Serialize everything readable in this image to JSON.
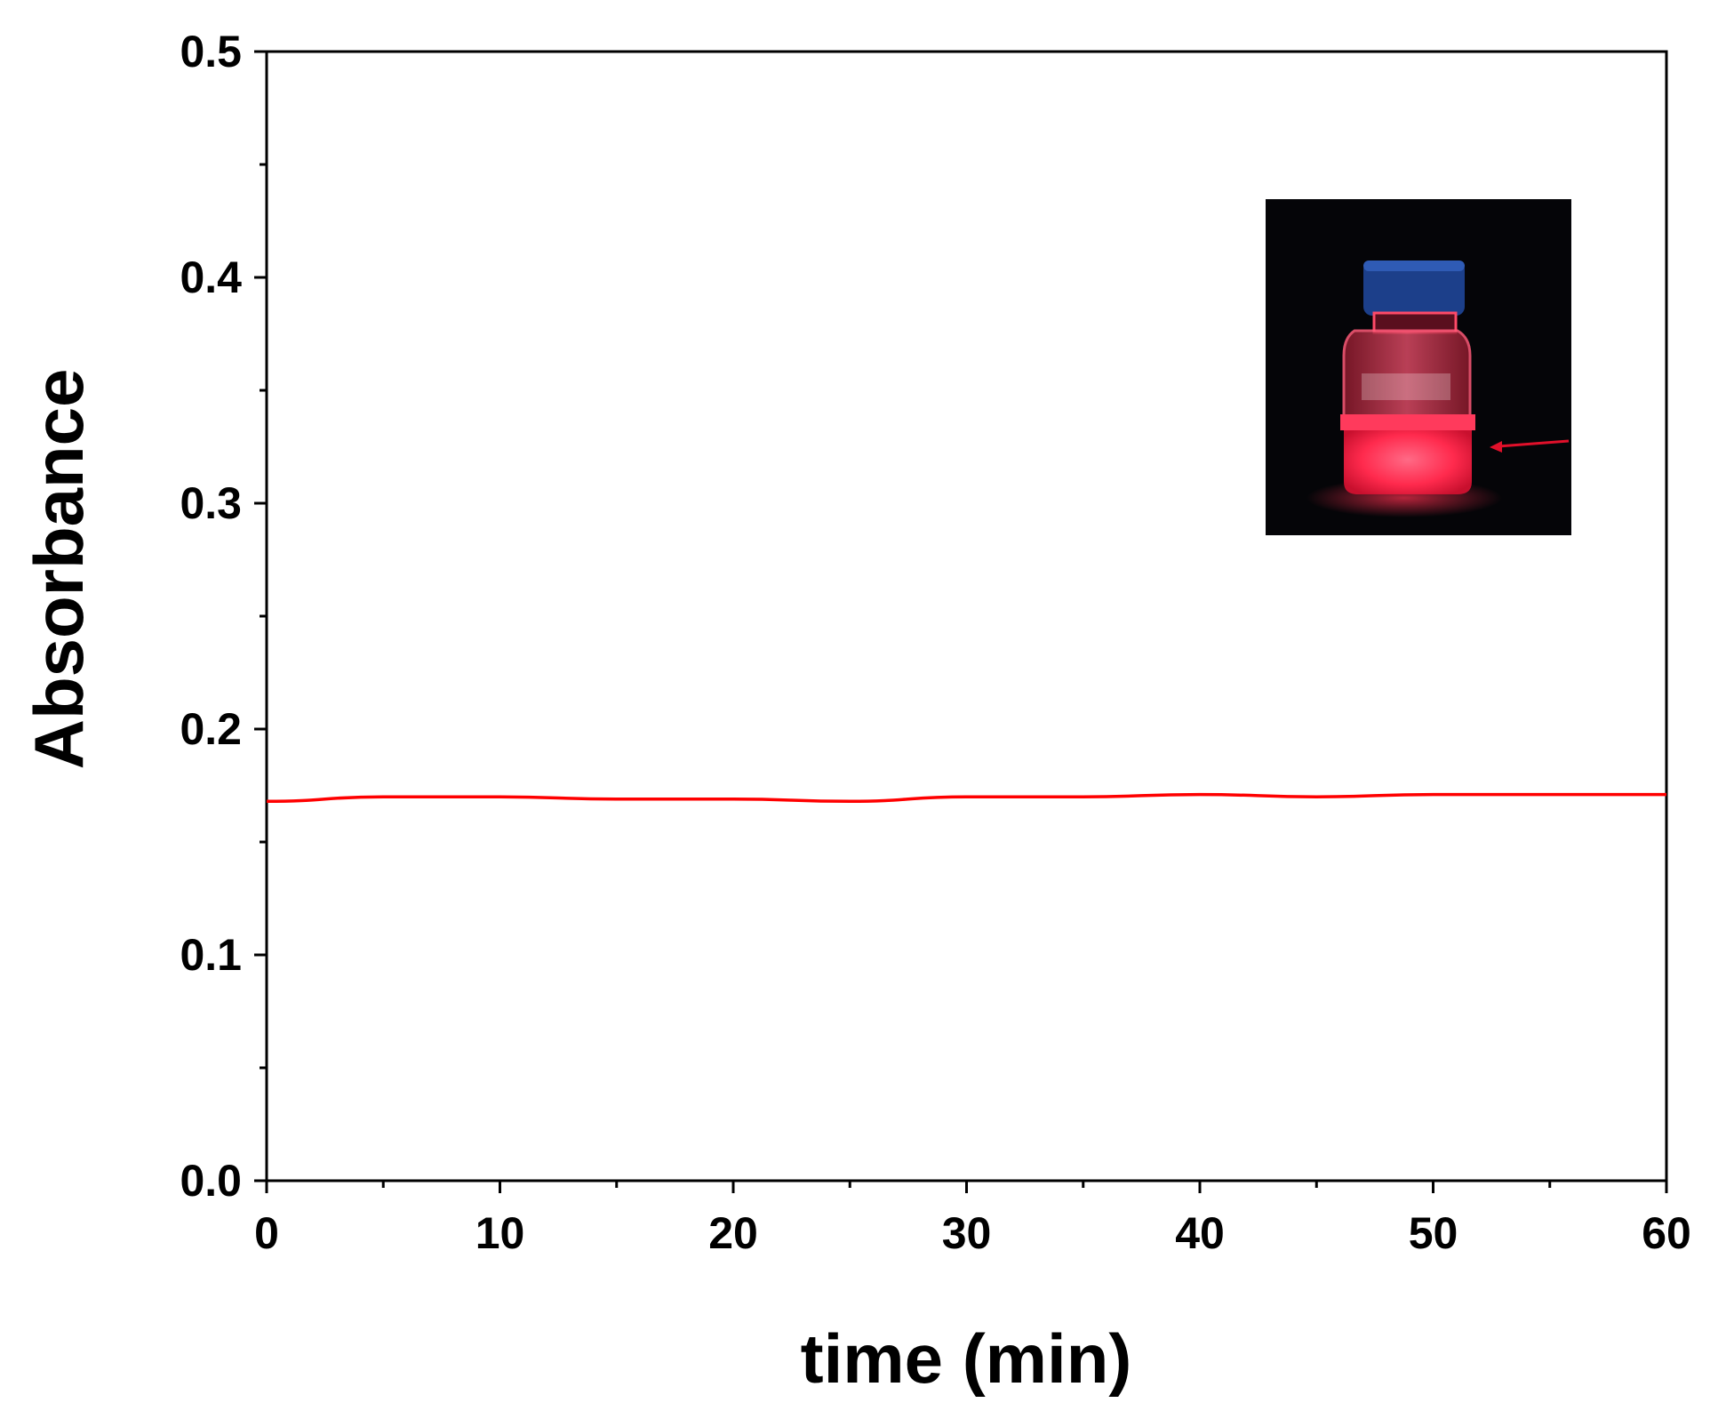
{
  "chart_data": {
    "type": "line",
    "title": "",
    "xlabel": "time (min)",
    "ylabel": "Absorbance",
    "xlim": [
      0,
      60
    ],
    "ylim": [
      0.0,
      0.5
    ],
    "x_ticks": [
      "0",
      "10",
      "20",
      "30",
      "40",
      "50",
      "60"
    ],
    "y_ticks": [
      "0.0",
      "0.1",
      "0.2",
      "0.3",
      "0.4",
      "0.5"
    ],
    "grid": false,
    "series": [
      {
        "color": "#ff0000",
        "x": [
          0,
          5,
          10,
          15,
          20,
          25,
          30,
          35,
          40,
          45,
          50,
          55,
          60
        ],
        "y": [
          0.168,
          0.17,
          0.17,
          0.169,
          0.169,
          0.168,
          0.17,
          0.17,
          0.171,
          0.17,
          0.171,
          0.171,
          0.171
        ]
      }
    ],
    "inset": {
      "description_icon": "photo-of-glowing-red-vial-icon",
      "colors": {
        "background": "#050508",
        "glow": "#ff2a4d",
        "cap": "#1c3f8a"
      }
    }
  }
}
